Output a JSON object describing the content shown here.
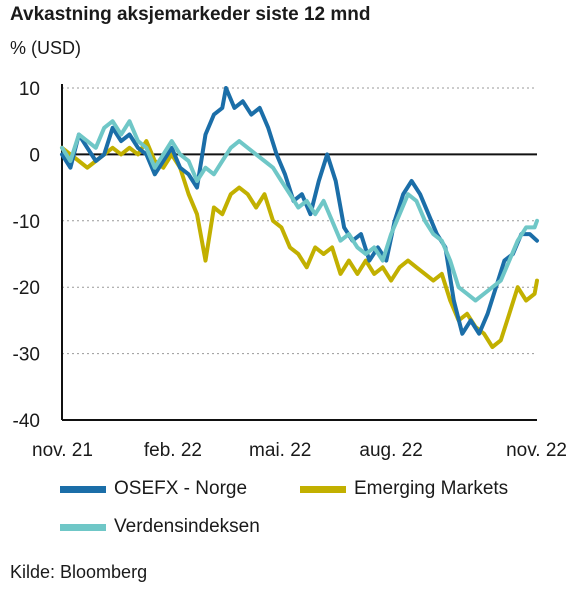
{
  "title": "Avkastning aksjemarkeder siste 12 mnd",
  "unit": "% (USD)",
  "source": "Kilde: Bloomberg",
  "legend": [
    {
      "name": "OSEFX - Norge",
      "color": "#1b6ea8"
    },
    {
      "name": "Emerging Markets",
      "color": "#c2b000"
    },
    {
      "name": "Verdensindeksen",
      "color": "#6fc7c7"
    }
  ],
  "chart_data": {
    "type": "line",
    "title": "Avkastning aksjemarkeder siste 12 mnd",
    "ylabel": "% (USD)",
    "ylim": [
      -40,
      10
    ],
    "yticks": [
      10,
      0,
      -10,
      -20,
      -30,
      -40
    ],
    "xlim": [
      "2021-11-01",
      "2022-11-30"
    ],
    "xtick_labels": [
      {
        "label": "nov. 21",
        "date": "2021-11-01"
      },
      {
        "label": "feb. 22",
        "date": "2022-02-01"
      },
      {
        "label": "mai. 22",
        "date": "2022-05-01"
      },
      {
        "label": "aug. 22",
        "date": "2022-08-01"
      },
      {
        "label": "nov. 22",
        "date": "2022-11-01"
      }
    ],
    "grid": "horizontal dotted",
    "legend_position": "bottom",
    "series": [
      {
        "name": "OSEFX - Norge",
        "color": "#1b6ea8",
        "points": [
          [
            "2021-11-01",
            0
          ],
          [
            "2021-11-08",
            -2
          ],
          [
            "2021-11-15",
            3
          ],
          [
            "2021-11-22",
            1
          ],
          [
            "2021-11-29",
            -1
          ],
          [
            "2021-12-06",
            0
          ],
          [
            "2021-12-13",
            4
          ],
          [
            "2021-12-20",
            2
          ],
          [
            "2021-12-27",
            3
          ],
          [
            "2022-01-03",
            1
          ],
          [
            "2022-01-10",
            0
          ],
          [
            "2022-01-17",
            -3
          ],
          [
            "2022-01-24",
            -1
          ],
          [
            "2022-01-31",
            1
          ],
          [
            "2022-02-07",
            -2
          ],
          [
            "2022-02-14",
            -3
          ],
          [
            "2022-02-21",
            -5
          ],
          [
            "2022-02-28",
            3
          ],
          [
            "2022-03-07",
            6
          ],
          [
            "2022-03-14",
            7
          ],
          [
            "2022-03-17",
            10
          ],
          [
            "2022-03-24",
            7
          ],
          [
            "2022-03-31",
            8
          ],
          [
            "2022-04-07",
            6
          ],
          [
            "2022-04-14",
            7
          ],
          [
            "2022-04-21",
            4
          ],
          [
            "2022-04-28",
            0
          ],
          [
            "2022-05-05",
            -3
          ],
          [
            "2022-05-12",
            -7
          ],
          [
            "2022-05-19",
            -6
          ],
          [
            "2022-05-26",
            -9
          ],
          [
            "2022-06-02",
            -4
          ],
          [
            "2022-06-09",
            0
          ],
          [
            "2022-06-16",
            -4
          ],
          [
            "2022-06-23",
            -11
          ],
          [
            "2022-06-30",
            -13
          ],
          [
            "2022-07-07",
            -12
          ],
          [
            "2022-07-14",
            -16
          ],
          [
            "2022-07-21",
            -14
          ],
          [
            "2022-07-28",
            -16
          ],
          [
            "2022-08-04",
            -10
          ],
          [
            "2022-08-11",
            -6
          ],
          [
            "2022-08-18",
            -4
          ],
          [
            "2022-08-25",
            -6
          ],
          [
            "2022-09-01",
            -9
          ],
          [
            "2022-09-08",
            -12
          ],
          [
            "2022-09-15",
            -14
          ],
          [
            "2022-09-22",
            -22
          ],
          [
            "2022-09-29",
            -27
          ],
          [
            "2022-10-06",
            -25
          ],
          [
            "2022-10-13",
            -27
          ],
          [
            "2022-10-20",
            -24
          ],
          [
            "2022-10-27",
            -20
          ],
          [
            "2022-11-03",
            -16
          ],
          [
            "2022-11-10",
            -15
          ],
          [
            "2022-11-17",
            -12
          ],
          [
            "2022-11-24",
            -12
          ],
          [
            "2022-11-30",
            -13
          ]
        ]
      },
      {
        "name": "Emerging Markets",
        "color": "#c2b000",
        "points": [
          [
            "2021-11-01",
            1
          ],
          [
            "2021-11-08",
            0
          ],
          [
            "2021-11-15",
            -1
          ],
          [
            "2021-11-22",
            -2
          ],
          [
            "2021-11-29",
            -1
          ],
          [
            "2021-12-06",
            0
          ],
          [
            "2021-12-13",
            1
          ],
          [
            "2021-12-20",
            0
          ],
          [
            "2021-12-27",
            1
          ],
          [
            "2022-01-03",
            0
          ],
          [
            "2022-01-10",
            2
          ],
          [
            "2022-01-17",
            -1
          ],
          [
            "2022-01-24",
            -2
          ],
          [
            "2022-01-31",
            0
          ],
          [
            "2022-02-07",
            -2
          ],
          [
            "2022-02-14",
            -6
          ],
          [
            "2022-02-21",
            -9
          ],
          [
            "2022-02-28",
            -16
          ],
          [
            "2022-03-07",
            -8
          ],
          [
            "2022-03-14",
            -9
          ],
          [
            "2022-03-21",
            -6
          ],
          [
            "2022-03-28",
            -5
          ],
          [
            "2022-04-04",
            -6
          ],
          [
            "2022-04-11",
            -8
          ],
          [
            "2022-04-18",
            -6
          ],
          [
            "2022-04-25",
            -10
          ],
          [
            "2022-05-02",
            -11
          ],
          [
            "2022-05-09",
            -14
          ],
          [
            "2022-05-16",
            -15
          ],
          [
            "2022-05-23",
            -17
          ],
          [
            "2022-05-30",
            -14
          ],
          [
            "2022-06-06",
            -15
          ],
          [
            "2022-06-13",
            -14
          ],
          [
            "2022-06-20",
            -18
          ],
          [
            "2022-06-27",
            -16
          ],
          [
            "2022-07-04",
            -18
          ],
          [
            "2022-07-11",
            -16
          ],
          [
            "2022-07-18",
            -18
          ],
          [
            "2022-07-25",
            -17
          ],
          [
            "2022-08-01",
            -19
          ],
          [
            "2022-08-08",
            -17
          ],
          [
            "2022-08-15",
            -16
          ],
          [
            "2022-08-22",
            -17
          ],
          [
            "2022-08-29",
            -18
          ],
          [
            "2022-09-05",
            -19
          ],
          [
            "2022-09-12",
            -18
          ],
          [
            "2022-09-19",
            -22
          ],
          [
            "2022-09-26",
            -25
          ],
          [
            "2022-10-03",
            -24
          ],
          [
            "2022-10-10",
            -26
          ],
          [
            "2022-10-17",
            -27
          ],
          [
            "2022-10-24",
            -29
          ],
          [
            "2022-10-31",
            -28
          ],
          [
            "2022-11-07",
            -24
          ],
          [
            "2022-11-14",
            -20
          ],
          [
            "2022-11-21",
            -22
          ],
          [
            "2022-11-28",
            -21
          ],
          [
            "2022-11-30",
            -19
          ]
        ]
      },
      {
        "name": "Verdensindeksen",
        "color": "#6fc7c7",
        "points": [
          [
            "2021-11-01",
            1
          ],
          [
            "2021-11-08",
            -1
          ],
          [
            "2021-11-15",
            3
          ],
          [
            "2021-11-22",
            2
          ],
          [
            "2021-11-29",
            1
          ],
          [
            "2021-12-06",
            4
          ],
          [
            "2021-12-13",
            5
          ],
          [
            "2021-12-20",
            3
          ],
          [
            "2021-12-27",
            5
          ],
          [
            "2022-01-03",
            2
          ],
          [
            "2022-01-10",
            1
          ],
          [
            "2022-01-17",
            -2
          ],
          [
            "2022-01-24",
            0
          ],
          [
            "2022-01-31",
            2
          ],
          [
            "2022-02-07",
            0
          ],
          [
            "2022-02-14",
            -1
          ],
          [
            "2022-02-21",
            -4
          ],
          [
            "2022-02-28",
            -2
          ],
          [
            "2022-03-07",
            -3
          ],
          [
            "2022-03-14",
            -1
          ],
          [
            "2022-03-21",
            1
          ],
          [
            "2022-03-28",
            2
          ],
          [
            "2022-04-04",
            1
          ],
          [
            "2022-04-11",
            0
          ],
          [
            "2022-04-18",
            -1
          ],
          [
            "2022-04-25",
            -2
          ],
          [
            "2022-05-02",
            -4
          ],
          [
            "2022-05-09",
            -6
          ],
          [
            "2022-05-16",
            -8
          ],
          [
            "2022-05-23",
            -7
          ],
          [
            "2022-05-30",
            -9
          ],
          [
            "2022-06-06",
            -7
          ],
          [
            "2022-06-13",
            -10
          ],
          [
            "2022-06-20",
            -13
          ],
          [
            "2022-06-27",
            -12
          ],
          [
            "2022-07-04",
            -14
          ],
          [
            "2022-07-11",
            -15
          ],
          [
            "2022-07-18",
            -14
          ],
          [
            "2022-07-25",
            -16
          ],
          [
            "2022-08-01",
            -12
          ],
          [
            "2022-08-08",
            -9
          ],
          [
            "2022-08-15",
            -6
          ],
          [
            "2022-08-22",
            -7
          ],
          [
            "2022-08-29",
            -10
          ],
          [
            "2022-09-05",
            -12
          ],
          [
            "2022-09-12",
            -13
          ],
          [
            "2022-09-19",
            -16
          ],
          [
            "2022-09-26",
            -20
          ],
          [
            "2022-10-03",
            -21
          ],
          [
            "2022-10-10",
            -22
          ],
          [
            "2022-10-17",
            -21
          ],
          [
            "2022-10-24",
            -20
          ],
          [
            "2022-10-31",
            -19
          ],
          [
            "2022-11-07",
            -16
          ],
          [
            "2022-11-14",
            -13
          ],
          [
            "2022-11-21",
            -11
          ],
          [
            "2022-11-28",
            -11
          ],
          [
            "2022-11-30",
            -10
          ]
        ]
      }
    ]
  }
}
